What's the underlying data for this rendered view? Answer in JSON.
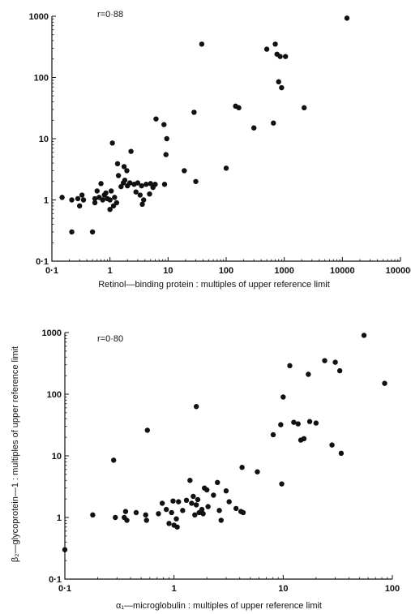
{
  "colors": {
    "ink": "#111111",
    "background": "#ffffff"
  },
  "chart_data": [
    {
      "type": "scatter",
      "annotation": "r=0·88",
      "xlabel": "Retinol—binding protein : multiples of upper reference limit",
      "ylabel": "",
      "xscale": "log",
      "yscale": "log",
      "xlim": [
        0.1,
        100000
      ],
      "ylim": [
        0.1,
        1000
      ],
      "grid": false,
      "xticks": [
        0.1,
        1,
        10,
        100,
        1000,
        10000,
        100000
      ],
      "xtick_labels": [
        "0·1",
        "1",
        "10",
        "100",
        "1000",
        "10000",
        "100000"
      ],
      "yticks": [
        0.1,
        1,
        10,
        100,
        1000
      ],
      "ytick_labels": [
        "0·1",
        "1",
        "10",
        "100",
        "1000"
      ],
      "points": [
        [
          0.15,
          1.1
        ],
        [
          0.22,
          1.0
        ],
        [
          0.22,
          0.3
        ],
        [
          0.28,
          1.05
        ],
        [
          0.3,
          0.8
        ],
        [
          0.33,
          1.2
        ],
        [
          0.35,
          1.0
        ],
        [
          0.5,
          0.3
        ],
        [
          0.55,
          1.05
        ],
        [
          0.55,
          0.9
        ],
        [
          0.6,
          1.4
        ],
        [
          0.65,
          1.1
        ],
        [
          0.7,
          1.85
        ],
        [
          0.75,
          1.0
        ],
        [
          0.8,
          1.2
        ],
        [
          0.85,
          1.3
        ],
        [
          0.9,
          1.05
        ],
        [
          1.0,
          0.7
        ],
        [
          1.0,
          1.0
        ],
        [
          1.05,
          1.4
        ],
        [
          1.1,
          8.5
        ],
        [
          1.15,
          0.8
        ],
        [
          1.2,
          1.1
        ],
        [
          1.3,
          0.9
        ],
        [
          1.35,
          3.9
        ],
        [
          1.4,
          2.5
        ],
        [
          1.55,
          1.65
        ],
        [
          1.7,
          1.9
        ],
        [
          1.75,
          3.5
        ],
        [
          1.8,
          2.1
        ],
        [
          1.95,
          3.0
        ],
        [
          2.0,
          1.7
        ],
        [
          2.2,
          1.9
        ],
        [
          2.3,
          6.2
        ],
        [
          2.6,
          1.8
        ],
        [
          2.8,
          1.35
        ],
        [
          3.0,
          1.9
        ],
        [
          3.3,
          1.2
        ],
        [
          3.5,
          1.7
        ],
        [
          3.6,
          0.85
        ],
        [
          3.8,
          1.0
        ],
        [
          4.2,
          1.8
        ],
        [
          4.8,
          1.25
        ],
        [
          5.0,
          1.85
        ],
        [
          5.5,
          1.6
        ],
        [
          6.0,
          1.8
        ],
        [
          6.2,
          21
        ],
        [
          8.5,
          17
        ],
        [
          8.7,
          1.8
        ],
        [
          9.2,
          5.5
        ],
        [
          9.5,
          10
        ],
        [
          19,
          3.0
        ],
        [
          28,
          27
        ],
        [
          30,
          2.0
        ],
        [
          38,
          350
        ],
        [
          100,
          3.3
        ],
        [
          145,
          34
        ],
        [
          165,
          32
        ],
        [
          300,
          15
        ],
        [
          500,
          290
        ],
        [
          650,
          18
        ],
        [
          700,
          350
        ],
        [
          750,
          240
        ],
        [
          800,
          85
        ],
        [
          850,
          220
        ],
        [
          900,
          68
        ],
        [
          1050,
          220
        ],
        [
          2200,
          32
        ],
        [
          12000,
          930
        ]
      ]
    },
    {
      "type": "scatter",
      "annotation": "r=0·80",
      "xlabel": "α₁—microglobulin : multiples of upper reference limit",
      "ylabel": "β₂—glycoprotein—1 : multiples of upper reference limit",
      "xscale": "log",
      "yscale": "log",
      "xlim": [
        0.1,
        100
      ],
      "ylim": [
        0.1,
        1000
      ],
      "grid": false,
      "xticks": [
        0.1,
        1,
        10,
        100
      ],
      "xtick_labels": [
        "0·1",
        "1",
        "10",
        "100"
      ],
      "yticks": [
        0.1,
        1,
        10,
        100,
        1000
      ],
      "ytick_labels": [
        "0·1",
        "1",
        "10",
        "100",
        "1000"
      ],
      "points": [
        [
          0.1,
          0.3
        ],
        [
          0.18,
          1.1
        ],
        [
          0.28,
          8.5
        ],
        [
          0.29,
          1.0
        ],
        [
          0.35,
          1.0
        ],
        [
          0.36,
          1.25
        ],
        [
          0.37,
          0.9
        ],
        [
          0.45,
          1.2
        ],
        [
          0.55,
          1.1
        ],
        [
          0.56,
          0.9
        ],
        [
          0.57,
          26
        ],
        [
          0.72,
          1.15
        ],
        [
          0.78,
          1.7
        ],
        [
          0.85,
          1.35
        ],
        [
          0.9,
          0.8
        ],
        [
          0.95,
          1.2
        ],
        [
          0.98,
          1.85
        ],
        [
          1.0,
          0.75
        ],
        [
          1.05,
          0.95
        ],
        [
          1.07,
          0.7
        ],
        [
          1.1,
          1.8
        ],
        [
          1.2,
          1.3
        ],
        [
          1.3,
          1.9
        ],
        [
          1.4,
          4.0
        ],
        [
          1.45,
          1.7
        ],
        [
          1.5,
          2.2
        ],
        [
          1.55,
          1.1
        ],
        [
          1.6,
          1.6
        ],
        [
          1.6,
          63
        ],
        [
          1.65,
          1.95
        ],
        [
          1.7,
          1.2
        ],
        [
          1.8,
          1.35
        ],
        [
          1.85,
          1.15
        ],
        [
          1.9,
          3.0
        ],
        [
          2.0,
          2.8
        ],
        [
          2.05,
          1.5
        ],
        [
          2.3,
          2.3
        ],
        [
          2.5,
          3.7
        ],
        [
          2.6,
          1.3
        ],
        [
          2.7,
          0.9
        ],
        [
          3.0,
          2.7
        ],
        [
          3.2,
          1.8
        ],
        [
          3.7,
          1.4
        ],
        [
          4.1,
          1.25
        ],
        [
          4.2,
          6.5
        ],
        [
          4.3,
          1.2
        ],
        [
          5.8,
          5.5
        ],
        [
          8.1,
          22
        ],
        [
          9.5,
          32
        ],
        [
          9.7,
          3.5
        ],
        [
          10,
          90
        ],
        [
          11.5,
          290
        ],
        [
          12.5,
          35
        ],
        [
          13.7,
          33
        ],
        [
          14.5,
          18
        ],
        [
          15.5,
          19
        ],
        [
          17,
          210
        ],
        [
          17.5,
          36
        ],
        [
          20,
          34
        ],
        [
          24,
          350
        ],
        [
          28,
          15
        ],
        [
          30,
          330
        ],
        [
          33,
          240
        ],
        [
          34,
          11
        ],
        [
          55,
          900
        ],
        [
          85,
          150
        ]
      ]
    }
  ]
}
